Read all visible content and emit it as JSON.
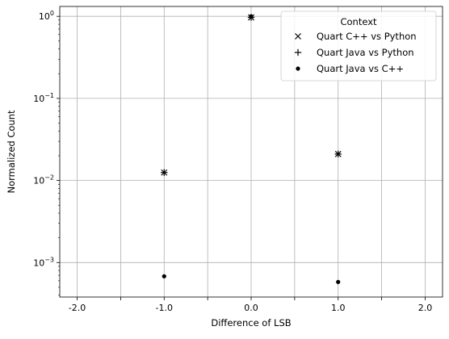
{
  "chart_data": {
    "type": "scatter",
    "xlabel": "Difference of LSB",
    "ylabel": "Normalized Count",
    "xlim": [
      -2.2,
      2.2
    ],
    "ylim_log10": [
      -3.42,
      0.12
    ],
    "y_scale": "log",
    "grid": true,
    "x_ticks": [
      {
        "value": -2.0,
        "label": "-2.0"
      },
      {
        "value": -1.5,
        "label": ""
      },
      {
        "value": -1.0,
        "label": "-1.0"
      },
      {
        "value": -0.5,
        "label": ""
      },
      {
        "value": 0.0,
        "label": "0.0"
      },
      {
        "value": 0.5,
        "label": ""
      },
      {
        "value": 1.0,
        "label": "1.0"
      },
      {
        "value": 1.5,
        "label": ""
      },
      {
        "value": 2.0,
        "label": "2.0"
      }
    ],
    "y_ticks": [
      {
        "value": 1,
        "base": "10",
        "exp": "0"
      },
      {
        "value": 0.1,
        "base": "10",
        "exp": "−1"
      },
      {
        "value": 0.01,
        "base": "10",
        "exp": "−2"
      },
      {
        "value": 0.001,
        "base": "10",
        "exp": "−3"
      }
    ],
    "legend": {
      "title": "Context",
      "placement": "top-right"
    },
    "series": [
      {
        "name": "Quart C++ vs Python",
        "marker": "x",
        "points": [
          {
            "x": -1,
            "y": 0.0125
          },
          {
            "x": 0,
            "y": 0.97
          },
          {
            "x": 1,
            "y": 0.021
          }
        ]
      },
      {
        "name": "Quart Java vs Python",
        "marker": "+",
        "points": [
          {
            "x": -1,
            "y": 0.0125
          },
          {
            "x": 0,
            "y": 0.97
          },
          {
            "x": 1,
            "y": 0.021
          }
        ]
      },
      {
        "name": "Quart Java vs C++",
        "marker": "dot",
        "points": [
          {
            "x": -1,
            "y": 0.00068
          },
          {
            "x": 0,
            "y": 0.998
          },
          {
            "x": 1,
            "y": 0.00058
          }
        ]
      }
    ]
  }
}
